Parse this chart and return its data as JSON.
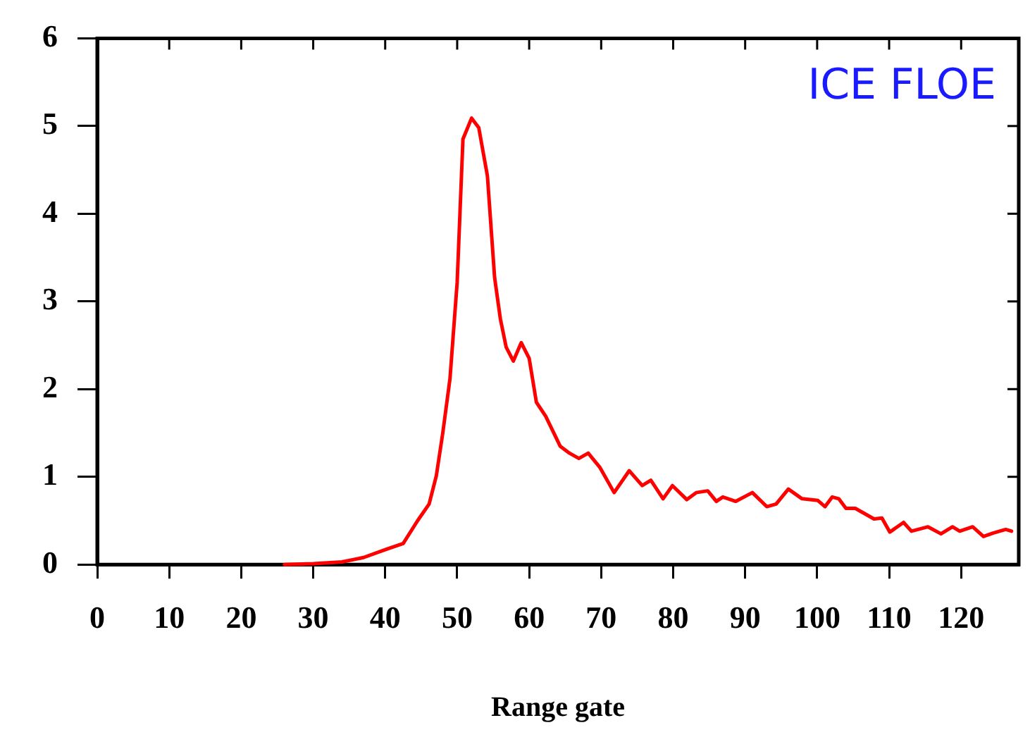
{
  "chart_data": {
    "type": "line",
    "xlabel": "Range gate",
    "annotations": [
      "ICE FLOE"
    ],
    "xlim": [
      0,
      128
    ],
    "xticks": [
      0,
      10,
      20,
      30,
      40,
      50,
      60,
      70,
      80,
      90,
      100,
      110,
      120
    ],
    "ylim": [
      0,
      6
    ],
    "yticks": [
      0,
      1,
      2,
      3,
      4,
      5,
      6
    ],
    "grid": false,
    "legend": false,
    "marker": "none",
    "line_style": "solid",
    "series": [
      {
        "color": "#ff0000",
        "x": [
          26,
          30,
          34,
          37,
          40,
          42.5,
          44.5,
          46.1,
          47.1,
          48,
          49,
          50,
          50.8,
          52,
          53,
          54.2,
          55.2,
          56,
          56.8,
          57.8,
          58.9,
          60,
          61,
          62.3,
          64.3,
          65.6,
          66.9,
          68.2,
          69.8,
          71.8,
          73.9,
          75.7,
          76.9,
          78.6,
          79.9,
          81.9,
          83.2,
          84.8,
          86,
          86.9,
          88.7,
          91,
          93,
          94.3,
          96,
          97.9,
          100.1,
          101.1,
          102.1,
          103,
          104,
          105.3,
          107.9,
          109,
          110.1,
          112,
          113.1,
          115.4,
          117.2,
          118.8,
          119.8,
          121.6,
          123.1,
          124.5,
          126.2,
          127
        ],
        "values": [
          0,
          0.01,
          0.03,
          0.08,
          0.17,
          0.24,
          0.5,
          0.69,
          1.01,
          1.5,
          2.12,
          3.22,
          4.85,
          5.09,
          4.98,
          4.43,
          3.27,
          2.8,
          2.48,
          2.32,
          2.53,
          2.35,
          1.85,
          1.69,
          1.35,
          1.27,
          1.21,
          1.27,
          1.11,
          0.82,
          1.07,
          0.9,
          0.96,
          0.75,
          0.9,
          0.74,
          0.82,
          0.84,
          0.72,
          0.77,
          0.72,
          0.82,
          0.66,
          0.69,
          0.86,
          0.75,
          0.73,
          0.66,
          0.77,
          0.75,
          0.64,
          0.64,
          0.52,
          0.53,
          0.37,
          0.48,
          0.38,
          0.43,
          0.35,
          0.43,
          0.38,
          0.43,
          0.32,
          0.36,
          0.4,
          0.38
        ]
      }
    ]
  }
}
